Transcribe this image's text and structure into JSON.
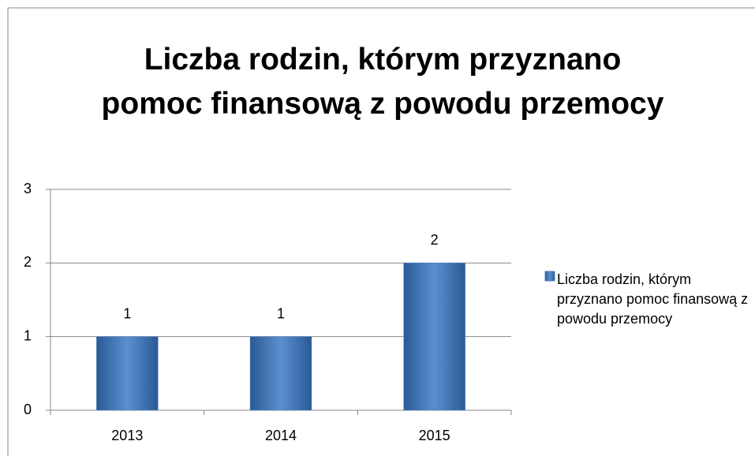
{
  "chart_data": {
    "type": "bar",
    "title": "Liczba rodzin, którym przyznano pomoc finansową z powodu przemocy",
    "categories": [
      "2013",
      "2014",
      "2015"
    ],
    "series": [
      {
        "name": "Liczba rodzin, którym przyznano pomoc finansową z powodu przemocy",
        "color": "#4f81bd",
        "values": [
          1,
          1,
          2
        ]
      }
    ],
    "ylim": [
      0,
      3
    ],
    "yticks": [
      0,
      1,
      2,
      3
    ],
    "grid": true,
    "legend": "right"
  }
}
